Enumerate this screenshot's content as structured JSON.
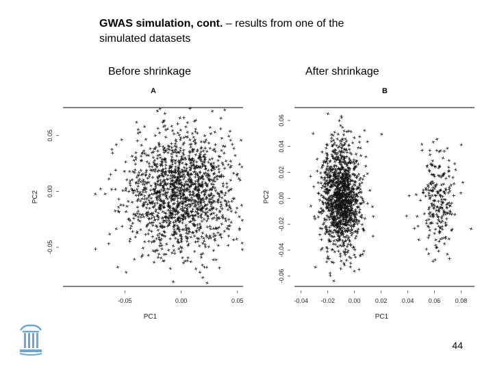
{
  "slide": {
    "title_bold": "GWAS simulation, cont.",
    "title_rest": " – results from one of the simulated datasets",
    "caption_left": "Before shrinkage",
    "caption_right": "After shrinkage",
    "page_number": "44"
  },
  "chart_data": [
    {
      "type": "scatter",
      "panel_label": "A",
      "xlabel": "PC1",
      "ylabel": "PC2",
      "x_ticks": [
        "-0.05",
        "0.00",
        "0.05"
      ],
      "x_tick_values": [
        -0.05,
        0.0,
        0.05
      ],
      "y_ticks": [
        "-0.05",
        "0.00",
        "0.05"
      ],
      "y_tick_values": [
        -0.05,
        0.0,
        0.05
      ],
      "xlim": [
        -0.105,
        0.055
      ],
      "ylim": [
        -0.085,
        0.075
      ],
      "marker": "+",
      "clusters": [
        {
          "center": [
            0.0,
            0.0
          ],
          "spread": [
            0.025,
            0.027
          ],
          "count": 1500
        }
      ]
    },
    {
      "type": "scatter",
      "panel_label": "B",
      "xlabel": "PC1",
      "ylabel": "PC2",
      "x_ticks": [
        "-0.04",
        "-0.02",
        "0.00",
        "0.02",
        "0.04",
        "0.06",
        "0.08"
      ],
      "x_tick_values": [
        -0.04,
        -0.02,
        0.0,
        0.02,
        0.04,
        0.06,
        0.08
      ],
      "y_ticks": [
        "-0.06",
        "-0.04",
        "-0.02",
        "0.00",
        "0.02",
        "0.04",
        "0.06"
      ],
      "y_tick_values": [
        -0.06,
        -0.04,
        -0.02,
        0.0,
        0.02,
        0.04,
        0.06
      ],
      "xlim": [
        -0.045,
        0.09
      ],
      "ylim": [
        -0.068,
        0.07
      ],
      "marker": "+",
      "clusters": [
        {
          "center": [
            -0.01,
            0.0
          ],
          "spread": [
            0.0075,
            0.022
          ],
          "count": 1250
        },
        {
          "center": [
            0.063,
            0.0
          ],
          "spread": [
            0.0075,
            0.02
          ],
          "count": 230
        }
      ]
    }
  ]
}
